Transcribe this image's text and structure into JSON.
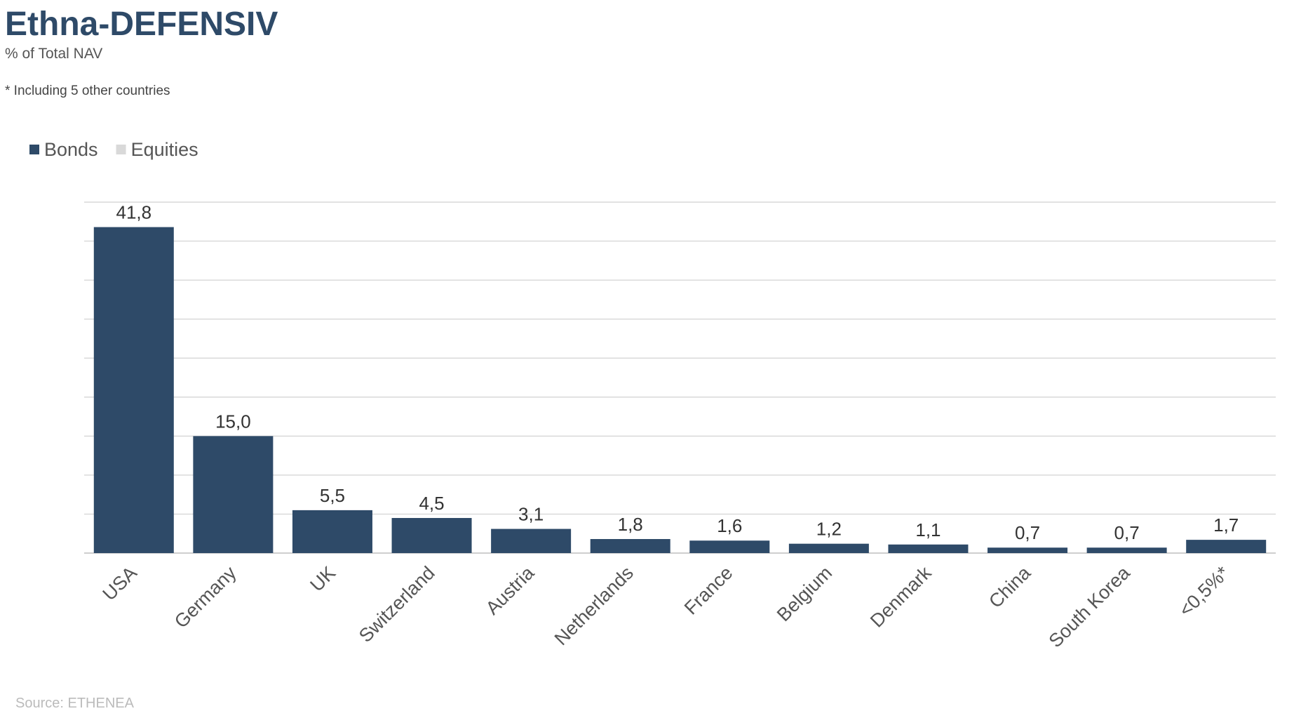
{
  "chart_data": {
    "type": "bar",
    "title": "Ethna-DEFENSIV",
    "subtitle": "% of Total NAV",
    "annotation": "* Including 5 other countries",
    "source": "Source: ETHENEA",
    "categories": [
      "USA",
      "Germany",
      "UK",
      "Switzerland",
      "Austria",
      "Netherlands",
      "France",
      "Belgium",
      "Denmark",
      "China",
      "South Korea",
      "<0,5%*"
    ],
    "series": [
      {
        "name": "Bonds",
        "color": "#2e4a68",
        "values": [
          41.8,
          15.0,
          5.5,
          4.5,
          3.1,
          1.8,
          1.6,
          1.2,
          1.1,
          0.7,
          0.7,
          1.7
        ],
        "value_labels": [
          "41,8",
          "15,0",
          "5,5",
          "4,5",
          "3,1",
          "1,8",
          "1,6",
          "1,2",
          "1,1",
          "0,7",
          "0,7",
          "1,7"
        ]
      },
      {
        "name": "Equities",
        "color": "#d9d9d9",
        "values": [
          0,
          0,
          0,
          0,
          0,
          0,
          0,
          0,
          0,
          0,
          0,
          0
        ]
      }
    ],
    "stacked": true,
    "ylim": [
      0,
      45
    ],
    "yticks": [
      0,
      5,
      10,
      15,
      20,
      25,
      30,
      35,
      40,
      45
    ],
    "grid": true,
    "legend": "top-left"
  }
}
